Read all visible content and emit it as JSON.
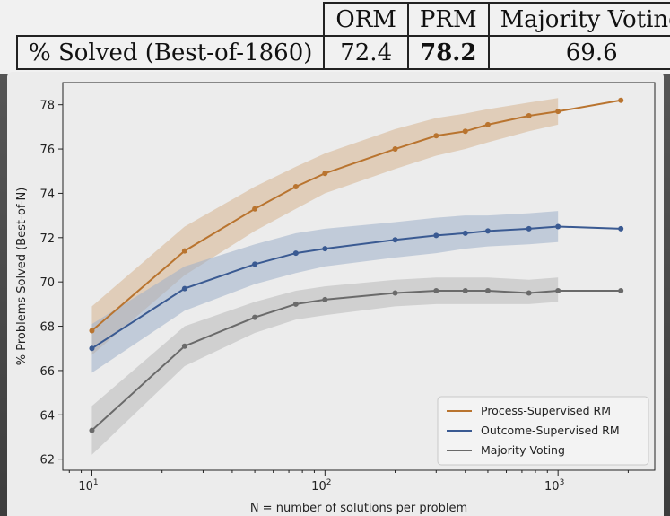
{
  "table": {
    "headers": [
      "ORM",
      "PRM",
      "Majority Voting"
    ],
    "row_label": "% Solved (Best-of-1860)",
    "values": [
      "72.4",
      "78.2",
      "69.6"
    ],
    "bold_index": 1
  },
  "chart_data": {
    "type": "line",
    "xscale": "log",
    "xlabel": "N = number of solutions per problem",
    "ylabel": "% Problems Solved (Best-of-N)",
    "xlim": [
      7.5,
      2600
    ],
    "ylim": [
      61.5,
      79
    ],
    "xticks": [
      10,
      100,
      1000
    ],
    "xtick_labels": [
      "10",
      "10",
      "10"
    ],
    "xtick_exponents": [
      "1",
      "2",
      "3"
    ],
    "yticks": [
      62,
      64,
      66,
      68,
      70,
      72,
      74,
      76,
      78
    ],
    "ytick_labels": [
      "62",
      "64",
      "66",
      "68",
      "70",
      "72",
      "74",
      "76",
      "78"
    ],
    "legend_position": "lower-right",
    "series": [
      {
        "name": "Process-Supervised RM",
        "color": "#b9742f",
        "band_color": "#d7b48f",
        "x": [
          10,
          25,
          50,
          75,
          100,
          200,
          300,
          400,
          500,
          750,
          1000,
          1860
        ],
        "y": [
          67.8,
          71.4,
          73.3,
          74.3,
          74.9,
          76.0,
          76.6,
          76.8,
          77.1,
          77.5,
          77.7,
          78.2
        ],
        "lower": [
          66.7,
          70.3,
          72.3,
          73.3,
          74.0,
          75.1,
          75.7,
          76.0,
          76.3,
          76.8,
          77.1,
          null
        ],
        "upper": [
          68.9,
          72.5,
          74.3,
          75.2,
          75.8,
          76.9,
          77.4,
          77.6,
          77.8,
          78.1,
          78.3,
          null
        ]
      },
      {
        "name": "Outcome-Supervised RM",
        "color": "#3a5a92",
        "band_color": "#9fb0cb",
        "x": [
          10,
          25,
          50,
          75,
          100,
          200,
          300,
          400,
          500,
          750,
          1000,
          1860
        ],
        "y": [
          67.0,
          69.7,
          70.8,
          71.3,
          71.5,
          71.9,
          72.1,
          72.2,
          72.3,
          72.4,
          72.5,
          72.4
        ],
        "lower": [
          65.9,
          68.7,
          69.9,
          70.4,
          70.7,
          71.1,
          71.3,
          71.5,
          71.6,
          71.7,
          71.8,
          null
        ],
        "upper": [
          68.1,
          70.7,
          71.7,
          72.2,
          72.4,
          72.7,
          72.9,
          73.0,
          73.0,
          73.1,
          73.2,
          null
        ]
      },
      {
        "name": "Majority Voting",
        "color": "#6a6a6a",
        "band_color": "#b9b9b9",
        "x": [
          10,
          25,
          50,
          75,
          100,
          200,
          300,
          400,
          500,
          750,
          1000,
          1860
        ],
        "y": [
          63.3,
          67.1,
          68.4,
          69.0,
          69.2,
          69.5,
          69.6,
          69.6,
          69.6,
          69.5,
          69.6,
          69.6
        ],
        "lower": [
          62.2,
          66.2,
          67.7,
          68.3,
          68.5,
          68.9,
          69.0,
          69.0,
          69.0,
          69.0,
          69.1,
          null
        ],
        "upper": [
          64.4,
          68.0,
          69.1,
          69.6,
          69.8,
          70.1,
          70.2,
          70.2,
          70.2,
          70.1,
          70.2,
          null
        ]
      }
    ]
  }
}
